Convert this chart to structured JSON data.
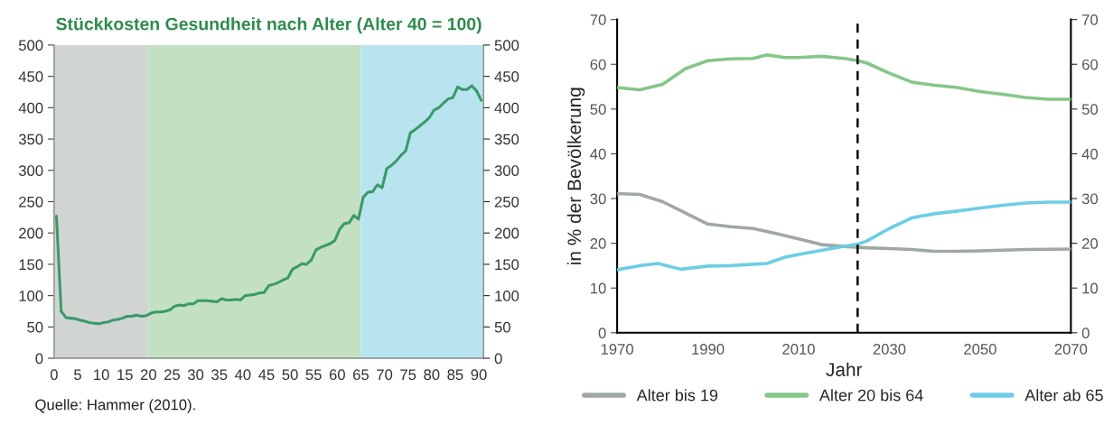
{
  "chart_data": [
    {
      "type": "line",
      "title": "Stückkosten Gesundheit nach Alter (Alter 40 = 100)",
      "annotations": [
        "Quelle: Hammer (2010)."
      ],
      "x": [
        0.5,
        1.5,
        2.5,
        3.5,
        4.5,
        5.5,
        6.5,
        7.5,
        8.5,
        9.5,
        10.5,
        11.5,
        12.5,
        13.5,
        14.5,
        15.5,
        16.5,
        17.5,
        18.5,
        19.5,
        20.5,
        21.5,
        22.5,
        23.5,
        24.5,
        25.5,
        26.5,
        27.5,
        28.5,
        29.5,
        30.5,
        31.5,
        32.5,
        33.5,
        34.5,
        35.5,
        36.5,
        37.5,
        38.5,
        39.5,
        40.5,
        41.5,
        42.5,
        43.5,
        44.5,
        45.5,
        46.5,
        47.5,
        48.5,
        49.5,
        50.5,
        51.5,
        52.5,
        53.5,
        54.5,
        55.5,
        56.5,
        57.5,
        58.5,
        59.5,
        60.5,
        61.5,
        62.5,
        63.5,
        64.5,
        65.5,
        66.5,
        67.5,
        68.5,
        69.5,
        70.5,
        71.5,
        72.5,
        73.5,
        74.5,
        75.5,
        76.5,
        77.5,
        78.5,
        79.5,
        80.5,
        81.5,
        82.5,
        83.5,
        84.5,
        85.5,
        86.5,
        87.5,
        88.5,
        89.5,
        90.5
      ],
      "series": [
        {
          "color": "#3a9a6a",
          "values": [
            227,
            75,
            65,
            64,
            63,
            61,
            59,
            57,
            56,
            55,
            57,
            58,
            61,
            62,
            64,
            67,
            67,
            69,
            67,
            68,
            72,
            74,
            74,
            75,
            77,
            83,
            85,
            84,
            87,
            87,
            92,
            92,
            92,
            91,
            90,
            95,
            93,
            93,
            94,
            93,
            100,
            101,
            102,
            104,
            105,
            116,
            118,
            121,
            125,
            128,
            142,
            146,
            151,
            150,
            157,
            173,
            177,
            180,
            183,
            188,
            206,
            215,
            216,
            228,
            222,
            257,
            265,
            266,
            277,
            272,
            303,
            308,
            315,
            324,
            331,
            360,
            365,
            371,
            377,
            384,
            396,
            400,
            407,
            414,
            416,
            433,
            429,
            429,
            435,
            427,
            412
          ]
        }
      ],
      "xlim": [
        0,
        91
      ],
      "xticks": [
        0,
        5,
        10,
        15,
        20,
        25,
        30,
        35,
        40,
        45,
        50,
        55,
        60,
        65,
        70,
        75,
        80,
        85,
        90
      ],
      "ylim": [
        0,
        500
      ],
      "yticks": [
        0,
        50,
        100,
        150,
        200,
        250,
        300,
        350,
        400,
        450,
        500
      ],
      "y2lim": [
        0,
        500
      ],
      "y2ticks": [
        0,
        50,
        100,
        150,
        200,
        250,
        300,
        350,
        400,
        450,
        500
      ],
      "bands": [
        {
          "axis": "x",
          "from": 0,
          "to": 20,
          "color": "#d0d5d2"
        },
        {
          "axis": "x",
          "from": 20,
          "to": 65,
          "color": "#c3e0c3"
        },
        {
          "axis": "x",
          "from": 65,
          "to": 91,
          "color": "#b8e4f0"
        }
      ],
      "grid": false,
      "legend": false
    },
    {
      "type": "line",
      "xlabel": "Jahr",
      "ylabel": "in % der Bevölkerung",
      "series": [
        {
          "name": "Alter bis 19",
          "color": "#a0a8a3",
          "x": [
            1970,
            1975,
            1980,
            1985,
            1990,
            1995,
            2000,
            2005,
            2010,
            2015,
            2020,
            2025,
            2030,
            2035,
            2040,
            2045,
            2050,
            2060,
            2070
          ],
          "values": [
            31.1,
            30.9,
            29.3,
            26.8,
            24.3,
            23.7,
            23.3,
            22.2,
            21,
            19.7,
            19.3,
            19,
            18.8,
            18.6,
            18.2,
            18.2,
            18.3,
            18.6,
            18.7
          ]
        },
        {
          "name": "Alter 20 bis 64",
          "color": "#85c68a",
          "x": [
            1970,
            1975,
            1980,
            1985,
            1990,
            1995,
            2000,
            2003,
            2007,
            2010,
            2015,
            2020,
            2023,
            2025,
            2030,
            2035,
            2040,
            2045,
            2050,
            2055,
            2060,
            2065,
            2070
          ],
          "values": [
            54.8,
            54.3,
            55.5,
            59,
            60.8,
            61.2,
            61.3,
            62.1,
            61.5,
            61.5,
            61.8,
            61.3,
            60.8,
            60.3,
            58,
            56,
            55.3,
            54.8,
            53.9,
            53.3,
            52.6,
            52.2,
            52.2
          ]
        },
        {
          "name": "Alter ab 65",
          "color": "#6dcde6",
          "x": [
            1970,
            1975,
            1979,
            1984,
            1990,
            1995,
            2000,
            2003,
            2007,
            2010,
            2015,
            2020,
            2023,
            2025,
            2030,
            2035,
            2040,
            2045,
            2050,
            2055,
            2060,
            2065,
            2070
          ],
          "values": [
            14.1,
            15,
            15.5,
            14.2,
            14.9,
            15,
            15.3,
            15.5,
            16.9,
            17.5,
            18.4,
            19.3,
            19.8,
            20.5,
            23.3,
            25.7,
            26.6,
            27.2,
            27.9,
            28.5,
            29,
            29.2,
            29.2
          ]
        }
      ],
      "xlim": [
        1970,
        2070
      ],
      "xticks": [
        1970,
        1990,
        2010,
        2030,
        2050,
        2070
      ],
      "ylim": [
        0,
        70
      ],
      "yticks": [
        0,
        10,
        20,
        30,
        40,
        50,
        60,
        70
      ],
      "y2lim": [
        0,
        70
      ],
      "y2ticks": [
        0,
        10,
        20,
        30,
        40,
        50,
        60,
        70
      ],
      "ref_lines": [
        {
          "axis": "x",
          "value": 2023,
          "color": "#000000",
          "line_style": "dashed"
        }
      ],
      "grid": false,
      "legend": "bottom"
    }
  ]
}
